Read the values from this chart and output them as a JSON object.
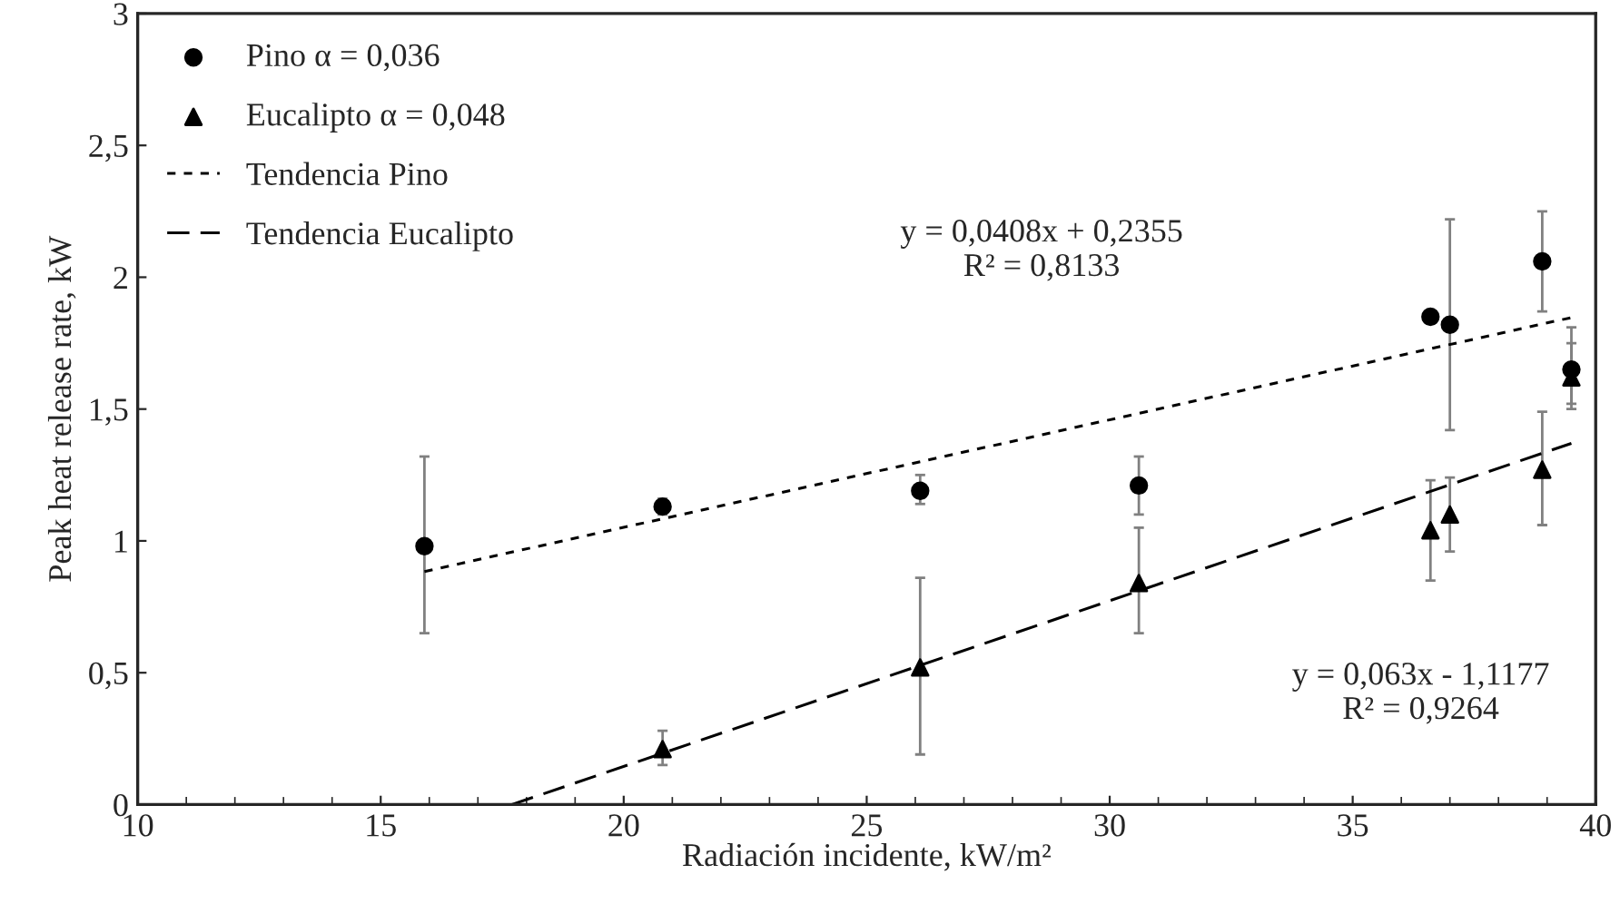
{
  "chart_data": {
    "type": "scatter",
    "xlabel": "Radiación incidente, kW/m²",
    "ylabel": "Peak heat release rate, kW",
    "xlim": [
      10,
      40
    ],
    "xticks": [
      10,
      15,
      20,
      25,
      30,
      35,
      40
    ],
    "ylim": [
      0,
      3
    ],
    "yticks": [
      0,
      {
        "value": 0.5,
        "label": "0,5"
      },
      1,
      {
        "value": 1.5,
        "label": "1,5"
      },
      2,
      {
        "value": 2.5,
        "label": "2,5"
      },
      3
    ],
    "grid": false,
    "legend": "top left",
    "series": [
      {
        "name": "Pino α = 0,036",
        "marker": "circle",
        "color": "#000000",
        "x": [
          15.9,
          20.8,
          26.1,
          30.6,
          36.6,
          37.0,
          38.9,
          39.5
        ],
        "values": [
          0.98,
          1.13,
          1.19,
          1.21,
          1.85,
          1.82,
          2.06,
          1.65
        ],
        "errors": [
          [
            0.65,
            1.32
          ],
          [
            1.1,
            1.16
          ],
          [
            1.14,
            1.25
          ],
          [
            1.1,
            1.32
          ],
          null,
          [
            1.42,
            2.22
          ],
          [
            1.87,
            2.25
          ],
          [
            1.5,
            1.81
          ]
        ]
      },
      {
        "name": "Eucalipto α = 0,048",
        "marker": "triangle",
        "color": "#000000",
        "x": [
          20.8,
          26.1,
          30.6,
          36.6,
          37.0,
          38.9,
          39.5
        ],
        "values": [
          0.21,
          0.52,
          0.84,
          1.04,
          1.1,
          1.27,
          1.62
        ],
        "errors": [
          [
            0.15,
            0.28
          ],
          [
            0.19,
            0.86
          ],
          [
            0.65,
            1.05
          ],
          [
            0.85,
            1.23
          ],
          [
            0.96,
            1.24
          ],
          [
            1.06,
            1.49
          ],
          [
            1.52,
            1.75
          ]
        ]
      },
      {
        "name": "Tendencia Pino",
        "type": "line",
        "line_style": "dotted",
        "color": "#000000",
        "x": [
          15.9,
          39.5
        ],
        "values": [
          0.884,
          1.847
        ]
      },
      {
        "name": "Tendencia Eucalipto",
        "type": "line",
        "line_style": "dashed",
        "color": "#000000",
        "x": [
          17.7,
          39.5
        ],
        "values": [
          0,
          1.37
        ]
      }
    ],
    "annotations": [
      "y = 0,0408x + 0,2355\nR² = 0,8133",
      "y = 0,063x - 1,1177\nR² = 0,9264"
    ]
  }
}
